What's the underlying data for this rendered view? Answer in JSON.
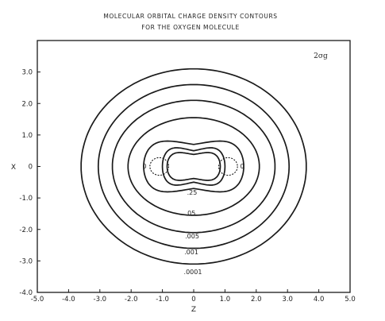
{
  "chart_data": {
    "type": "contour",
    "title_line1": "MOLECULAR ORBITAL CHARGE DENSITY CONTOURS",
    "title_line2": "FOR THE OXYGEN MOLECULE",
    "orbital_label": "2σg",
    "xlabel": "Z",
    "ylabel": "X",
    "xlim": [
      -5.0,
      5.0
    ],
    "ylim": [
      -4.0,
      4.0
    ],
    "x_ticks": [
      "-5.0",
      "-4.0",
      "-3.0",
      "-2.0",
      "-1.0",
      "0",
      "1.0",
      "2.0",
      "3.0",
      "4.0",
      "5.0"
    ],
    "y_ticks": [
      "3.0",
      "2.0",
      "1.0",
      "0",
      "-1.0",
      "-2.0",
      "-3.0",
      "-4.0"
    ],
    "y_tick_values": [
      3.0,
      2.0,
      1.0,
      0,
      -1.0,
      -2.0,
      -3.0,
      -4.0
    ],
    "contours": [
      {
        "level": "0",
        "shape": "node",
        "rz": 0.3,
        "rx": 0.28,
        "centers": [
          -1.1,
          1.1
        ],
        "style": "dashed"
      },
      {
        "level": ".25",
        "shape": "dumbbell",
        "wz": 0.85,
        "wx": 0.55,
        "waist": 0.38
      },
      {
        "level": "",
        "shape": "dumbbell",
        "wz": 1.0,
        "wx": 0.75,
        "waist": 0.5
      },
      {
        "level": ".05",
        "shape": "dumbbell",
        "wz": 1.6,
        "wx": 1.0,
        "waist": 0.7
      },
      {
        "level": "",
        "shape": "oval",
        "wz": 2.1,
        "wx": 1.55
      },
      {
        "level": ".005",
        "shape": "oval",
        "wz": 2.6,
        "wx": 2.1
      },
      {
        "level": ".001",
        "shape": "oval",
        "wz": 3.05,
        "wx": 2.6
      },
      {
        "level": ".0001",
        "shape": "oval",
        "wz": 3.6,
        "wx": 3.1
      }
    ],
    "contour_labels": [
      ".25",
      ".05",
      ".005",
      ".001",
      ".0001"
    ],
    "node_labels": [
      "0",
      "0"
    ],
    "grid": false,
    "legend": "none"
  }
}
